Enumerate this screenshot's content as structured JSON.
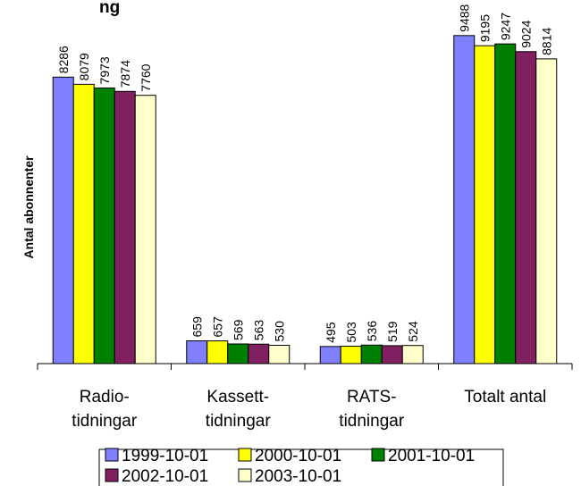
{
  "chart_data": {
    "type": "bar",
    "title": "",
    "title_visible_fragment": "ng",
    "ylabel": "Antal abonnenter",
    "xlabel": "",
    "ylim": [
      0,
      10000
    ],
    "grid": false,
    "legend": "bottom",
    "categories": [
      [
        "Radio-",
        "tidningar"
      ],
      [
        "Kassett-",
        "tidningar"
      ],
      [
        "RATS-",
        "tidningar"
      ],
      [
        "Totalt antal"
      ]
    ],
    "series": [
      {
        "name": "1999-10-01",
        "color": "#8080ff",
        "values": [
          8286,
          659,
          495,
          9488
        ]
      },
      {
        "name": "2000-10-01",
        "color": "#ffff00",
        "values": [
          8079,
          657,
          503,
          9195
        ]
      },
      {
        "name": "2001-10-01",
        "color": "#008000",
        "values": [
          7973,
          569,
          536,
          9247
        ]
      },
      {
        "name": "2002-10-01",
        "color": "#802060",
        "values": [
          7874,
          563,
          519,
          9024
        ]
      },
      {
        "name": "2003-10-01",
        "color": "#ffffcc",
        "values": [
          7760,
          530,
          524,
          8814
        ]
      }
    ]
  }
}
